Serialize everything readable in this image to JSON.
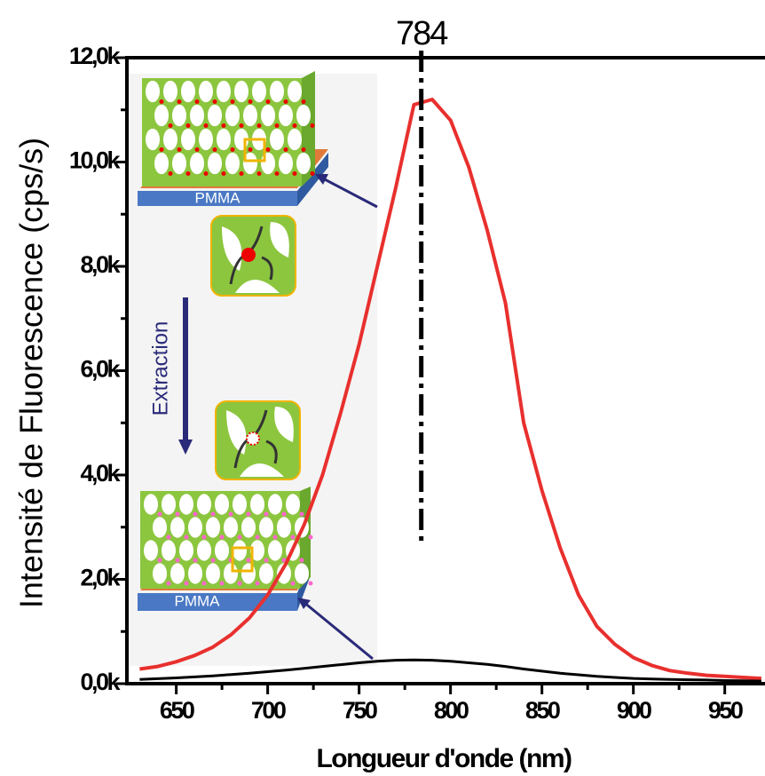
{
  "chart_data": {
    "type": "line",
    "xlabel": "Longueur d'onde (nm)",
    "ylabel": "Intensité de Fluorescence (cps/s)",
    "x": [
      630,
      640,
      650,
      660,
      670,
      680,
      690,
      700,
      710,
      720,
      730,
      740,
      750,
      760,
      770,
      780,
      790,
      800,
      810,
      820,
      830,
      840,
      850,
      860,
      870,
      880,
      890,
      900,
      910,
      920,
      930,
      940,
      950,
      960,
      970
    ],
    "series": [
      {
        "color": "#e8302e",
        "values": [
          280,
          330,
          420,
          540,
          700,
          940,
          1260,
          1700,
          2300,
          3050,
          4000,
          5200,
          6500,
          8000,
          9500,
          11100,
          11200,
          10800,
          9900,
          8700,
          7300,
          5000,
          3700,
          2600,
          1700,
          1100,
          750,
          500,
          350,
          250,
          200,
          160,
          140,
          120,
          100
        ]
      },
      {
        "color": "#000000",
        "values": [
          80,
          95,
          110,
          130,
          150,
          175,
          200,
          230,
          260,
          295,
          330,
          365,
          400,
          430,
          450,
          455,
          450,
          430,
          400,
          370,
          330,
          280,
          240,
          200,
          170,
          140,
          120,
          100,
          90,
          80,
          75,
          70,
          60,
          55,
          50
        ]
      }
    ],
    "xlim": [
      623,
      972
    ],
    "ylim": [
      0,
      12000
    ],
    "xticks": [
      650,
      700,
      750,
      800,
      850,
      900,
      950
    ],
    "xticks_minor": [
      675,
      725,
      775,
      825,
      875,
      925
    ],
    "yticks": [
      {
        "value": 0,
        "label": "0,0k"
      },
      {
        "value": 2000,
        "label": "2,0k"
      },
      {
        "value": 4000,
        "label": "4,0k"
      },
      {
        "value": 6000,
        "label": "6,0k"
      },
      {
        "value": 8000,
        "label": "8,0k"
      },
      {
        "value": 10000,
        "label": "10,0k"
      },
      {
        "value": 12000,
        "label": "12,0k"
      }
    ],
    "yticks_minor": [
      1000,
      3000,
      5000,
      7000,
      9000,
      11000
    ],
    "annotation": {
      "label": "784",
      "x": 784,
      "ymin": 2700
    },
    "inset": {
      "top_label": "PMMA",
      "arrow_label": "Extraction",
      "bottom_label": "PMMA"
    }
  }
}
